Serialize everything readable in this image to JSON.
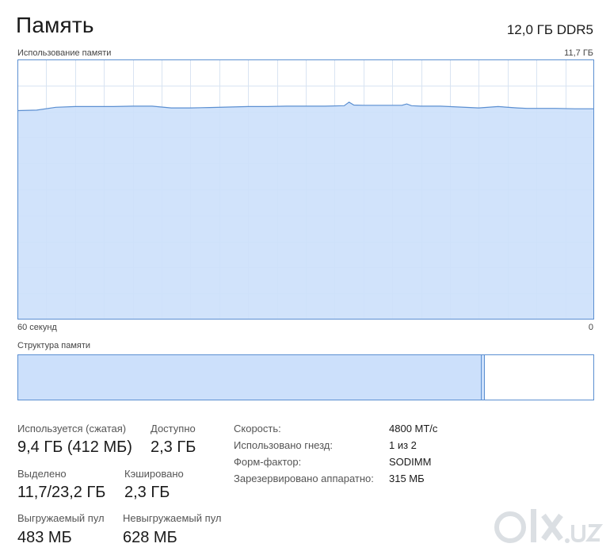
{
  "header": {
    "title": "Память",
    "memory_type": "12,0 ГБ DDR5"
  },
  "usage_graph": {
    "label": "Использование памяти",
    "max_label": "11,7 ГБ",
    "time_start_label": "60 секунд",
    "time_end_label": "0",
    "fill_color": "#cce0fb",
    "line_color": "#5b8fd1"
  },
  "chart_data": {
    "type": "area",
    "x": [
      60,
      58,
      56,
      54,
      52,
      50,
      48,
      46,
      44,
      42,
      40,
      38,
      36,
      34,
      32,
      30,
      28,
      26,
      25.5,
      25,
      24,
      22,
      20,
      19.5,
      19,
      18,
      16,
      14,
      12,
      10,
      8,
      7,
      6,
      4,
      2,
      0
    ],
    "values": [
      9.4,
      9.42,
      9.55,
      9.58,
      9.58,
      9.58,
      9.6,
      9.6,
      9.52,
      9.52,
      9.54,
      9.56,
      9.58,
      9.58,
      9.6,
      9.6,
      9.6,
      9.62,
      9.78,
      9.65,
      9.64,
      9.64,
      9.64,
      9.7,
      9.62,
      9.6,
      9.6,
      9.56,
      9.52,
      9.58,
      9.52,
      9.5,
      9.5,
      9.5,
      9.48,
      9.48
    ],
    "xlabel": "",
    "ylabel": "",
    "ylim": [
      0,
      11.7
    ],
    "xlim": [
      60,
      0
    ],
    "grid": true
  },
  "structure": {
    "label": "Структура памяти",
    "in_use_fraction": 0.805,
    "modified_fraction": 0.004
  },
  "stats": {
    "in_use_label": "Используется (сжатая)",
    "in_use_value": "9,4 ГБ (412 МБ)",
    "available_label": "Доступно",
    "available_value": "2,3 ГБ",
    "committed_label": "Выделено",
    "committed_value": "11,7/23,2 ГБ",
    "cached_label": "Кэшировано",
    "cached_value": "2,3 ГБ",
    "paged_label": "Выгружаемый пул",
    "paged_value": "483 МБ",
    "nonpaged_label": "Невыгружаемый пул",
    "nonpaged_value": "628 МБ"
  },
  "properties": [
    {
      "label": "Скорость:",
      "value": "4800 МТ/с"
    },
    {
      "label": "Использовано гнезд:",
      "value": "1 из 2"
    },
    {
      "label": "Форм-фактор:",
      "value": "SODIMM"
    },
    {
      "label": "Зарезервировано аппаратно:",
      "value": "315 МБ"
    }
  ],
  "watermark": {
    "text": "olx.uz"
  }
}
